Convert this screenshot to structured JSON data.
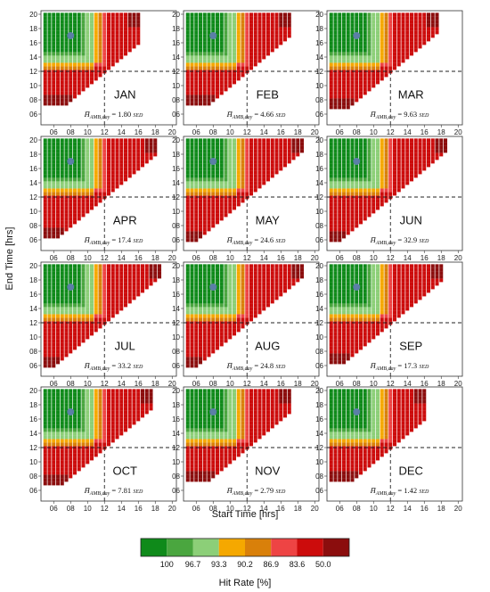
{
  "chart_data": {
    "type": "heatmap",
    "xlabel": "Start Time [hrs]",
    "ylabel": "End Time [hrs]",
    "x_ticks": [
      "06",
      "08",
      "10",
      "12",
      "14",
      "16",
      "18",
      "20"
    ],
    "y_ticks": [
      "06",
      "08",
      "10",
      "12",
      "14",
      "16",
      "18",
      "20"
    ],
    "xlim": [
      4.5,
      20.5
    ],
    "ylim": [
      4.5,
      20.5
    ],
    "reference_lines": {
      "start": 12,
      "end": 12
    },
    "marker": {
      "start": 8,
      "end": 17
    },
    "hbar_label": "H̄",
    "hbar_subscript": "AMB,day",
    "hbar_unit": "SED",
    "panels": [
      {
        "month": "JAN",
        "hbar": "1.80",
        "row_min": 7.5,
        "col_max": 16,
        "green_start_max": 10.5,
        "green_end_min": 13.5
      },
      {
        "month": "FEB",
        "hbar": "4.66",
        "row_min": 7.5,
        "col_max": 17,
        "green_start_max": 10.5,
        "green_end_min": 13.5
      },
      {
        "month": "MAR",
        "hbar": "9.63",
        "row_min": 7,
        "col_max": 17.5,
        "green_start_max": 10.5,
        "green_end_min": 13.5
      },
      {
        "month": "APR",
        "hbar": "17.4",
        "row_min": 6.5,
        "col_max": 18,
        "green_start_max": 10.5,
        "green_end_min": 13.5
      },
      {
        "month": "MAY",
        "hbar": "24.6",
        "row_min": 6,
        "col_max": 18.5,
        "green_start_max": 10.5,
        "green_end_min": 13.5
      },
      {
        "month": "JUN",
        "hbar": "32.9",
        "row_min": 6,
        "col_max": 18.5,
        "green_start_max": 10.5,
        "green_end_min": 13.5
      },
      {
        "month": "JUL",
        "hbar": "33.2",
        "row_min": 6,
        "col_max": 18.5,
        "green_start_max": 10.5,
        "green_end_min": 13.5
      },
      {
        "month": "AUG",
        "hbar": "24.8",
        "row_min": 6,
        "col_max": 18.5,
        "green_start_max": 10.5,
        "green_end_min": 13.5
      },
      {
        "month": "SEP",
        "hbar": "17.3",
        "row_min": 6.5,
        "col_max": 18,
        "green_start_max": 10.5,
        "green_end_min": 13.5
      },
      {
        "month": "OCT",
        "hbar": "7.81",
        "row_min": 7,
        "col_max": 17.5,
        "green_start_max": 10.5,
        "green_end_min": 13.5
      },
      {
        "month": "NOV",
        "hbar": "2.79",
        "row_min": 7.5,
        "col_max": 17,
        "green_start_max": 10.5,
        "green_end_min": 13.5
      },
      {
        "month": "DEC",
        "hbar": "1.42",
        "row_min": 7.5,
        "col_max": 16,
        "green_start_max": 10.5,
        "green_end_min": 13.5
      }
    ],
    "colorbar": {
      "title": "Hit Rate [%]",
      "ticks": [
        "100",
        "96.7",
        "93.3",
        "90.2",
        "86.9",
        "83.6",
        "50.0"
      ],
      "colors": [
        "#0f8a1a",
        "#4aa63f",
        "#8ccf78",
        "#f5a800",
        "#d9800a",
        "#ee4444",
        "#cc0c0c",
        "#8b0d0d"
      ]
    }
  }
}
